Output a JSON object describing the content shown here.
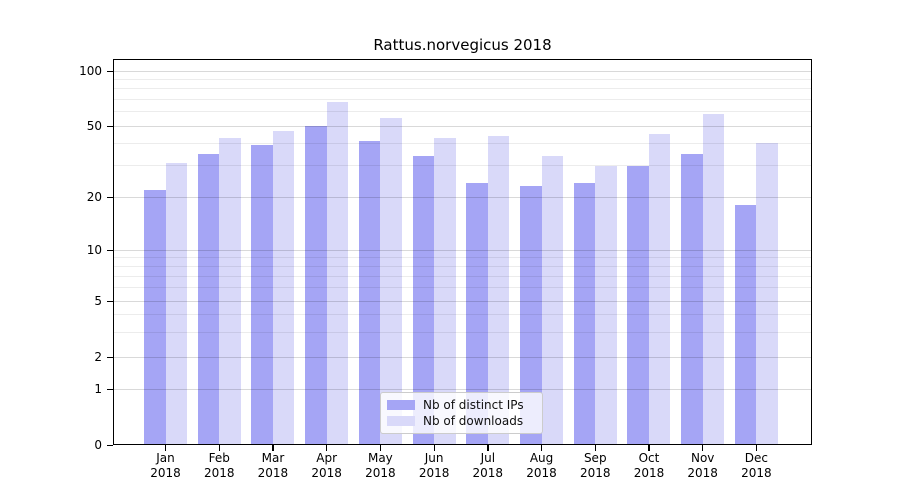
{
  "title": "Rattus.norvegicus 2018",
  "legend": {
    "items": [
      {
        "label": "Nb of distinct IPs",
        "color": "#a5a5f5"
      },
      {
        "label": "Nb of downloads",
        "color": "#d9d9f9"
      }
    ]
  },
  "y_axis": {
    "tick_labels": [
      "100",
      "50",
      "20",
      "10",
      "5",
      "2",
      "1",
      "0"
    ],
    "tick_values": [
      100,
      50,
      20,
      10,
      5,
      2,
      1,
      0
    ]
  },
  "x_axis": {
    "months": [
      "Jan",
      "Feb",
      "Mar",
      "Apr",
      "May",
      "Jun",
      "Jul",
      "Aug",
      "Sep",
      "Oct",
      "Nov",
      "Dec"
    ],
    "year": "2018"
  },
  "chart_data": {
    "type": "bar",
    "title": "Rattus.norvegicus 2018",
    "categories": [
      "Jan 2018",
      "Feb 2018",
      "Mar 2018",
      "Apr 2018",
      "May 2018",
      "Jun 2018",
      "Jul 2018",
      "Aug 2018",
      "Sep 2018",
      "Oct 2018",
      "Nov 2018",
      "Dec 2018"
    ],
    "series": [
      {
        "name": "Nb of distinct IPs",
        "color": "#a5a5f5",
        "values": [
          22,
          35,
          39,
          50,
          41,
          34,
          24,
          23,
          24,
          30,
          35,
          18
        ]
      },
      {
        "name": "Nb of downloads",
        "color": "#d9d9f9",
        "values": [
          31,
          43,
          47,
          68,
          55,
          43,
          44,
          34,
          30,
          45,
          58,
          40
        ]
      }
    ],
    "y_scale": "symlog-like (linear 0-1, compressed log above)",
    "y_major_ticks": [
      0,
      1,
      2,
      5,
      10,
      20,
      50,
      100
    ],
    "y_minor_gridlines": [
      3,
      4,
      6,
      7,
      8,
      9,
      30,
      40,
      60,
      70,
      80,
      90
    ],
    "ylim": [
      0,
      116
    ],
    "grid": "horizontal only",
    "legend_position": "lower center"
  }
}
